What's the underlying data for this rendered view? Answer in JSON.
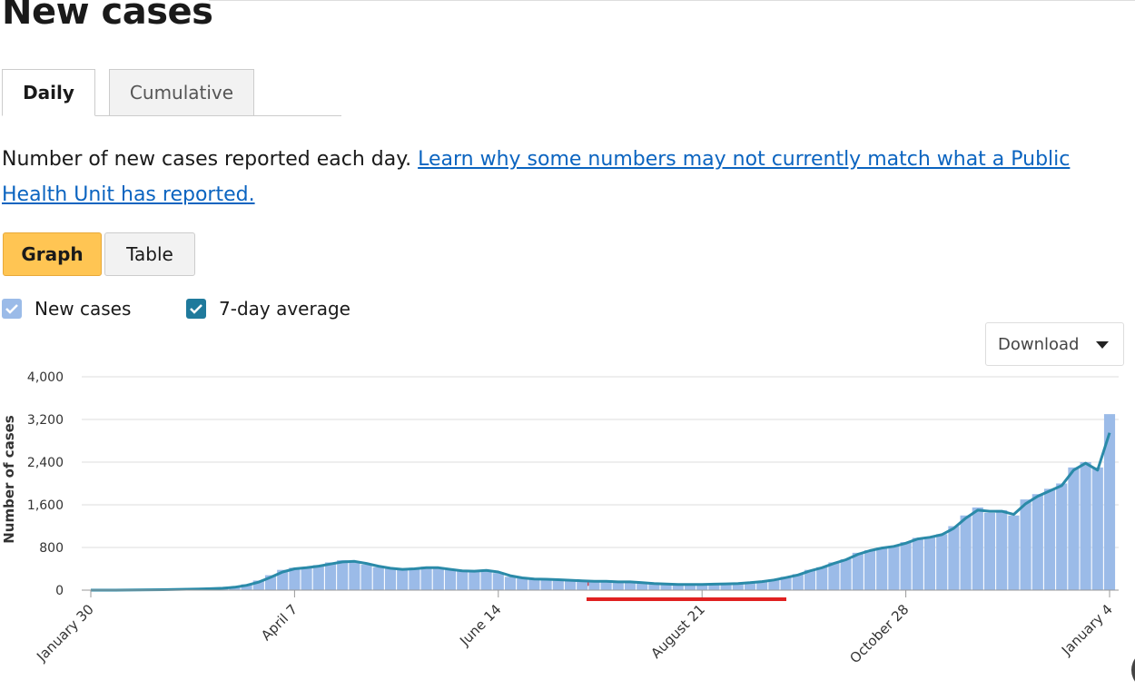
{
  "page": {
    "title": "New cases",
    "tabs": [
      "Daily",
      "Cumulative"
    ],
    "description": "Number of new cases reported each day.",
    "link": "Learn why some numbers may not currently match what a Public Health Unit has reported.",
    "buttons": [
      "Graph",
      "Table"
    ],
    "download": "Download"
  },
  "chart_data": {
    "type": "bar",
    "y_label": "Number of cases",
    "grid": true,
    "categories": [
      "January 30",
      null,
      null,
      null,
      null,
      null,
      null,
      null,
      null,
      null,
      null,
      null,
      null,
      null,
      null,
      null,
      null,
      "April 7",
      null,
      null,
      null,
      null,
      null,
      null,
      null,
      null,
      null,
      null,
      null,
      null,
      null,
      null,
      null,
      null,
      "June 14",
      null,
      null,
      null,
      null,
      null,
      null,
      null,
      null,
      null,
      null,
      null,
      null,
      null,
      null,
      null,
      null,
      "August 21",
      null,
      null,
      null,
      null,
      null,
      null,
      null,
      null,
      null,
      null,
      null,
      null,
      null,
      null,
      null,
      null,
      "October 28",
      null,
      null,
      null,
      null,
      null,
      null,
      null,
      null,
      null,
      null,
      null,
      null,
      null,
      null,
      null,
      null,
      "January 4"
    ],
    "series": [
      {
        "name": "New cases",
        "color": "#9bbbe8",
        "values": [
          0,
          0,
          0,
          2,
          5,
          10,
          10,
          15,
          20,
          25,
          30,
          40,
          70,
          110,
          180,
          280,
          380,
          420,
          430,
          470,
          520,
          560,
          540,
          480,
          430,
          400,
          380,
          420,
          440,
          420,
          380,
          350,
          360,
          380,
          320,
          250,
          220,
          200,
          210,
          190,
          180,
          170,
          160,
          170,
          150,
          160,
          130,
          120,
          110,
          100,
          105,
          110,
          115,
          120,
          130,
          150,
          170,
          200,
          250,
          300,
          380,
          430,
          520,
          580,
          700,
          750,
          800,
          830,
          900,
          980,
          1000,
          1050,
          1200,
          1400,
          1550,
          1450,
          1500,
          1400,
          1700,
          1800,
          1900,
          2000,
          2300,
          2400,
          2300,
          3300
        ]
      },
      {
        "name": "7-day average",
        "color": "#2a8aa8",
        "values": [
          0,
          0,
          0,
          1,
          3,
          7,
          9,
          12,
          17,
          22,
          27,
          35,
          55,
          90,
          150,
          240,
          340,
          400,
          420,
          450,
          490,
          530,
          540,
          500,
          450,
          410,
          390,
          400,
          420,
          420,
          390,
          360,
          355,
          370,
          340,
          270,
          230,
          210,
          205,
          195,
          185,
          175,
          165,
          165,
          155,
          155,
          140,
          125,
          115,
          105,
          105,
          108,
          112,
          118,
          125,
          140,
          160,
          190,
          235,
          285,
          360,
          420,
          500,
          570,
          670,
          740,
          790,
          820,
          880,
          960,
          990,
          1040,
          1160,
          1350,
          1500,
          1480,
          1480,
          1420,
          1620,
          1760,
          1860,
          1960,
          2250,
          2380,
          2250,
          2950
        ]
      }
    ],
    "ylim": [
      0,
      4000
    ],
    "yticks": [
      0,
      {
        "value": 800,
        "label": "800"
      },
      {
        "value": 1600,
        "label": "1,600"
      },
      {
        "value": 2400,
        "label": "2,400"
      },
      {
        "value": 3200,
        "label": "3,200"
      },
      {
        "value": 4000,
        "label": "4,000"
      }
    ]
  }
}
